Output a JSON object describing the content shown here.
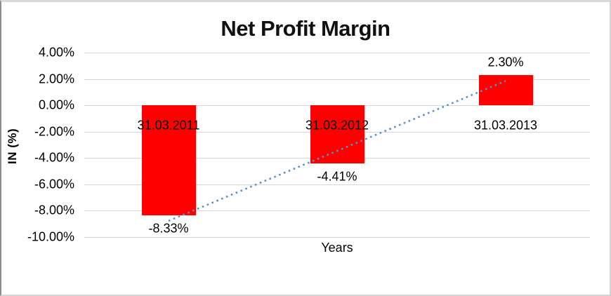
{
  "chart_data": {
    "type": "bar",
    "title": "Net Profit Margin",
    "xlabel": "Years",
    "ylabel": "IN (%)",
    "categories": [
      "31.03.2011",
      "31.03.2012",
      "31.03.2013"
    ],
    "values": [
      -8.33,
      -4.41,
      2.3
    ],
    "value_labels": [
      "-8.33%",
      "-4.41%",
      "2.30%"
    ],
    "y_ticks": [
      {
        "value": 4,
        "label": "4.00%"
      },
      {
        "value": 2,
        "label": "2.00%"
      },
      {
        "value": 0,
        "label": "0.00%"
      },
      {
        "value": -2,
        "label": "-2.00%"
      },
      {
        "value": -4,
        "label": "-4.00%"
      },
      {
        "value": -6,
        "label": "-6.00%"
      },
      {
        "value": -8,
        "label": "-8.00%"
      },
      {
        "value": -10,
        "label": "-10.00%"
      }
    ],
    "ylim": [
      -10,
      4
    ],
    "grid": "horizontal-only",
    "legend": "none",
    "bar_color": "#ff0000",
    "gridline_color": "#d6d6d6",
    "trendline": {
      "style": "dotted",
      "color": "#5b8fd0",
      "start": {
        "category_index": 0,
        "value": -8.77
      },
      "end": {
        "category_index": 2,
        "value": 1.85
      }
    }
  }
}
